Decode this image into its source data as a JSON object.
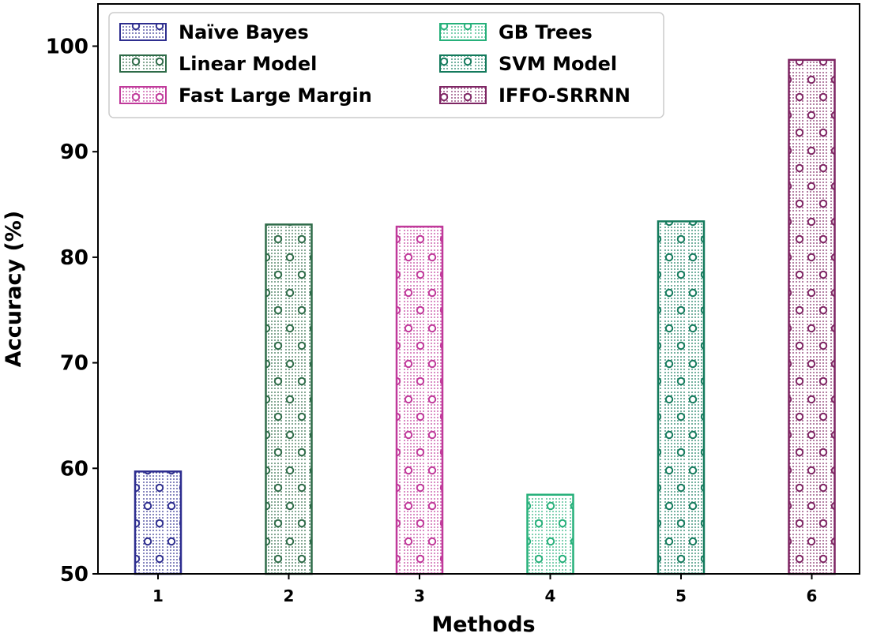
{
  "chart_data": {
    "type": "bar",
    "title": "",
    "xlabel": "Methods",
    "ylabel": "Accuracy (%)",
    "ylim": [
      50,
      104
    ],
    "yticks": [
      50,
      60,
      70,
      80,
      90,
      100
    ],
    "categories": [
      "1",
      "2",
      "3",
      "4",
      "5",
      "6"
    ],
    "series": [
      {
        "name": "Naïve Bayes",
        "category": "1",
        "value": 59.7,
        "color": "#2e2e8f"
      },
      {
        "name": "Linear Model",
        "category": "2",
        "value": 83.1,
        "color": "#2e6b48"
      },
      {
        "name": "Fast Large Margin",
        "category": "3",
        "value": 82.9,
        "color": "#c0399a"
      },
      {
        "name": "GB Trees",
        "category": "4",
        "value": 57.5,
        "color": "#26b07a"
      },
      {
        "name": "SVM Model",
        "category": "5",
        "value": 83.4,
        "color": "#137a5c"
      },
      {
        "name": "IFFO-SRRNN",
        "category": "6",
        "value": 98.7,
        "color": "#7e2563"
      }
    ],
    "legend_position": "top-left",
    "grid": false
  }
}
